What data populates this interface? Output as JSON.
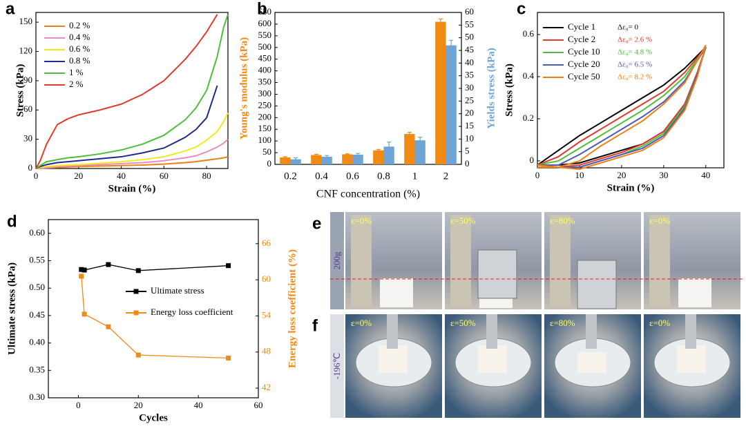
{
  "chart_data": [
    {
      "panel": "a",
      "type": "line",
      "xlabel": "Strain (%)",
      "ylabel": "Stress (kPa)",
      "x": [
        0,
        2,
        5,
        10,
        15,
        20,
        30,
        40,
        50,
        60,
        70,
        75,
        80,
        85,
        88,
        90
      ],
      "xlim": [
        0,
        90
      ],
      "xticks": [
        0,
        20,
        40,
        60,
        80
      ],
      "ylim": [
        0,
        160
      ],
      "yticks": [
        0,
        30,
        60,
        90,
        120,
        150
      ],
      "legend": "upper left",
      "series": [
        {
          "name": "0.2 %",
          "color": "#f07f13",
          "values": [
            0,
            0.2,
            0.5,
            1,
            1.5,
            2,
            2.5,
            3,
            3.5,
            4.5,
            6,
            7,
            8.5,
            10,
            11,
            12
          ]
        },
        {
          "name": "0.4 %",
          "color": "#e58cc8",
          "values": [
            0,
            0.5,
            1,
            2,
            2.5,
            3,
            4,
            5,
            6,
            8,
            11,
            13,
            17,
            22,
            26,
            30
          ]
        },
        {
          "name": "0.6 %",
          "color": "#f2ea1c",
          "values": [
            0,
            1,
            2,
            3,
            3.5,
            4,
            5.5,
            7,
            9,
            12,
            18,
            22,
            29,
            38,
            48,
            57
          ]
        },
        {
          "name": "0.8 %",
          "color": "#1f2a8c",
          "values": [
            0,
            2,
            4,
            6,
            7,
            8,
            10,
            12,
            16,
            21,
            32,
            40,
            52,
            85,
            null,
            null
          ]
        },
        {
          "name": "1 %",
          "color": "#4cbf3a",
          "values": [
            0,
            3,
            7,
            9,
            11,
            12,
            15,
            19,
            25,
            34,
            50,
            62,
            80,
            115,
            145,
            158
          ]
        },
        {
          "name": "2 %",
          "color": "#e23a2a",
          "values": [
            0,
            8,
            25,
            45,
            51,
            55,
            60,
            66,
            76,
            90,
            112,
            125,
            140,
            158,
            null,
            null
          ]
        }
      ]
    },
    {
      "panel": "b",
      "type": "bar",
      "xlabel": "CNF concentration (%)",
      "ylabel": "Young's modulus (kPa)",
      "y2label": "Yields stress (kPa)",
      "categories": [
        "0.2",
        "0.4",
        "0.6",
        "0.8",
        "1",
        "2"
      ],
      "ylim": [
        0,
        650
      ],
      "yticks": [
        0,
        50,
        100,
        150,
        200,
        250,
        300,
        350,
        400,
        450,
        500,
        550,
        600,
        650
      ],
      "y2lim": [
        0,
        60
      ],
      "y2ticks": [
        0,
        5,
        10,
        15,
        20,
        25,
        30,
        35,
        40,
        45,
        50,
        55,
        60
      ],
      "series": [
        {
          "color": "#f08a12",
          "values": [
            30,
            40,
            43,
            60,
            130,
            610
          ],
          "errors": [
            3,
            3,
            2,
            4,
            7,
            12
          ]
        },
        {
          "color": "#6ea4d6",
          "axis": "y2",
          "values": [
            2,
            3,
            3.8,
            7,
            9.5,
            47
          ],
          "errors": [
            0.6,
            0.5,
            0.5,
            1.8,
            1.2,
            2
          ]
        }
      ]
    },
    {
      "panel": "c",
      "type": "line",
      "xlabel": "Strain (%)",
      "ylabel": "Stress (kPa)",
      "xlim": [
        0,
        44.3
      ],
      "xticks": [
        0,
        10,
        20,
        30,
        40
      ],
      "ylim": [
        -0.033,
        0.705
      ],
      "yticks": [
        0,
        0.2,
        0.4,
        0.6
      ],
      "legend": "upper left",
      "annotations": [
        "Δε₀= 0",
        "Δε₀= 2.6 %",
        "Δε₀= 4.8 %",
        "Δε₀= 6.5 %",
        "Δε₀= 8.2 %"
      ],
      "series": [
        {
          "name": "Cycle 1",
          "color": "#000000",
          "x": [
            0,
            5,
            10,
            15,
            20,
            25,
            30,
            35,
            40,
            38,
            35,
            30,
            25,
            20,
            15,
            10,
            5,
            0
          ],
          "values": [
            -0.02,
            0.05,
            0.12,
            0.18,
            0.24,
            0.3,
            0.36,
            0.44,
            0.54,
            0.42,
            0.27,
            0.14,
            0.08,
            0.05,
            0.02,
            -0.01,
            -0.02,
            -0.02
          ]
        },
        {
          "name": "Cycle 2",
          "color": "#e23a2a",
          "x": [
            0,
            5,
            10,
            15,
            20,
            25,
            30,
            35,
            40,
            38,
            35,
            30,
            25,
            20,
            15,
            10,
            5,
            0
          ],
          "values": [
            -0.02,
            0.02,
            0.09,
            0.15,
            0.21,
            0.27,
            0.33,
            0.42,
            0.54,
            0.42,
            0.27,
            0.14,
            0.08,
            0.04,
            0.01,
            -0.02,
            -0.03,
            -0.02
          ]
        },
        {
          "name": "Cycle 10",
          "color": "#4cbf3a",
          "x": [
            0,
            5,
            10,
            15,
            20,
            25,
            30,
            35,
            40,
            38,
            35,
            30,
            25,
            20,
            15,
            10,
            5,
            0
          ],
          "values": [
            -0.02,
            0,
            0.06,
            0.12,
            0.18,
            0.24,
            0.31,
            0.4,
            0.54,
            0.41,
            0.26,
            0.13,
            0.07,
            0.03,
            0,
            -0.03,
            -0.03,
            -0.02
          ]
        },
        {
          "name": "Cycle 20",
          "color": "#4a5bb8",
          "x": [
            0,
            5,
            10,
            15,
            20,
            25,
            30,
            35,
            40,
            38,
            35,
            30,
            25,
            20,
            15,
            10,
            5,
            0
          ],
          "values": [
            -0.02,
            -0.02,
            0.03,
            0.09,
            0.15,
            0.21,
            0.28,
            0.38,
            0.54,
            0.41,
            0.25,
            0.12,
            0.06,
            0.03,
            0,
            -0.03,
            -0.03,
            -0.02
          ]
        },
        {
          "name": "Cycle 50",
          "color": "#f07f13",
          "x": [
            0,
            5,
            10,
            15,
            20,
            25,
            30,
            35,
            40,
            38,
            35,
            30,
            25,
            20,
            15,
            10,
            5,
            0
          ],
          "values": [
            -0.02,
            -0.03,
            0,
            0.07,
            0.13,
            0.19,
            0.27,
            0.37,
            0.55,
            0.4,
            0.24,
            0.11,
            0.05,
            0.02,
            -0.01,
            -0.04,
            -0.03,
            -0.03
          ]
        }
      ]
    },
    {
      "panel": "d",
      "type": "line",
      "markers": "square",
      "xlabel": "Cycles",
      "ylabel": "Ultimate stress (kPa)",
      "y2label": "Energy loss coefficient (%)",
      "x": [
        1,
        2,
        10,
        20,
        50
      ],
      "xlim": [
        -10,
        60
      ],
      "xticks": [
        0,
        20,
        40,
        60
      ],
      "ylim": [
        0.3,
        0.625
      ],
      "yticks": [
        {
          "value": 0.3,
          "label": "0.30"
        },
        {
          "value": 0.35,
          "label": "0.35"
        },
        {
          "value": 0.4,
          "label": "0.40"
        },
        {
          "value": 0.45,
          "label": "0.45"
        },
        {
          "value": 0.5,
          "label": "0.50"
        },
        {
          "value": 0.55,
          "label": "0.55"
        },
        {
          "value": 0.6,
          "label": "0.60"
        }
      ],
      "y2lim": [
        40.4,
        70
      ],
      "y2ticks": [
        42,
        48,
        54,
        60,
        66
      ],
      "series": [
        {
          "name": "Ultimate stress",
          "color": "#000000",
          "values": [
            0.534,
            0.533,
            0.543,
            0.532,
            0.541
          ]
        },
        {
          "name": "Energy loss coefficient",
          "color": "#f08a12",
          "axis": "y2",
          "values": [
            60.6,
            54.3,
            52.2,
            47.5,
            47.0
          ]
        }
      ]
    }
  ],
  "photos": [
    {
      "panel": "e",
      "side_label": "200g",
      "frames": [
        "ε=0%",
        "ε=50%",
        "ε=80%",
        "ε=0%"
      ]
    },
    {
      "panel": "f",
      "side_label": "-196℃",
      "frames": [
        "ε=0%",
        "ε=50%",
        "ε=80%",
        "ε=0%"
      ]
    }
  ]
}
